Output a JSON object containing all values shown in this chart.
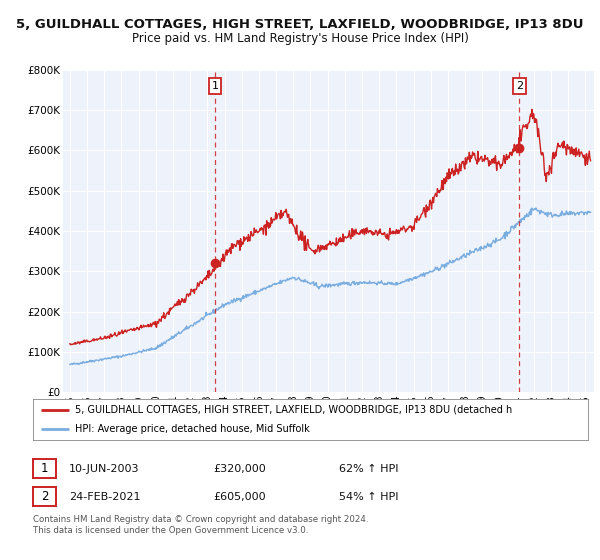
{
  "title": "5, GUILDHALL COTTAGES, HIGH STREET, LAXFIELD, WOODBRIDGE, IP13 8DU",
  "subtitle": "Price paid vs. HM Land Registry's House Price Index (HPI)",
  "ylim": [
    0,
    800000
  ],
  "xlim_start": 1994.6,
  "xlim_end": 2025.5,
  "yticks": [
    0,
    100000,
    200000,
    300000,
    400000,
    500000,
    600000,
    700000,
    800000
  ],
  "ytick_labels": [
    "£0",
    "£100K",
    "£200K",
    "£300K",
    "£400K",
    "£500K",
    "£600K",
    "£700K",
    "£800K"
  ],
  "xticks": [
    1995,
    1996,
    1997,
    1998,
    1999,
    2000,
    2001,
    2002,
    2003,
    2004,
    2005,
    2006,
    2007,
    2008,
    2009,
    2010,
    2011,
    2012,
    2013,
    2014,
    2015,
    2016,
    2017,
    2018,
    2019,
    2020,
    2021,
    2022,
    2023,
    2024,
    2025
  ],
  "background_color": "#ffffff",
  "plot_bg_color": "#eef2fb",
  "grid_color": "#ffffff",
  "red_line_color": "#cc2222",
  "blue_line_color": "#7aade0",
  "marker1_x": 2003.44,
  "marker1_y": 320000,
  "marker2_x": 2021.15,
  "marker2_y": 605000,
  "vline1_x": 2003.44,
  "vline2_x": 2021.15,
  "label1": "1",
  "label2": "2",
  "legend_red": "5, GUILDHALL COTTAGES, HIGH STREET, LAXFIELD, WOODBRIDGE, IP13 8DU (detached h",
  "legend_blue": "HPI: Average price, detached house, Mid Suffolk",
  "table_row1": [
    "1",
    "10-JUN-2003",
    "£320,000",
    "62% ↑ HPI"
  ],
  "table_row2": [
    "2",
    "24-FEB-2021",
    "£605,000",
    "54% ↑ HPI"
  ],
  "footer1": "Contains HM Land Registry data © Crown copyright and database right 2024.",
  "footer2": "This data is licensed under the Open Government Licence v3.0.",
  "title_fontsize": 9.5,
  "subtitle_fontsize": 8.5
}
